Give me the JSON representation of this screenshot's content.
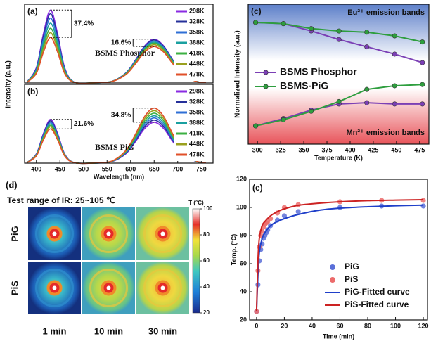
{
  "chart_data": [
    {
      "type": "line",
      "label": "(a)",
      "ylabel": "Intensity (a.u.)",
      "inset_label": "BSMS Phosphor",
      "annotations": [
        "37.4%",
        "16.6%"
      ],
      "legend": "right",
      "x": [
        380,
        400,
        415,
        430,
        445,
        460,
        480,
        520,
        560,
        590,
        610,
        630,
        650,
        670,
        690,
        710,
        740,
        760
      ],
      "xlim": [
        375,
        775
      ],
      "ylim": [
        0,
        1.08
      ],
      "series": [
        {
          "name": "298K",
          "color": "#8a2be2",
          "values": [
            0.013,
            0.211,
            0.678,
            1,
            0.678,
            0.211,
            0.013,
            0.001,
            0.022,
            0.138,
            0.312,
            0.51,
            0.6,
            0.51,
            0.312,
            0.138,
            0.022,
            0.004
          ]
        },
        {
          "name": "328K",
          "color": "#26309a",
          "values": [
            0.012,
            0.2,
            0.644,
            0.95,
            0.644,
            0.2,
            0.012,
            0.001,
            0.022,
            0.136,
            0.307,
            0.502,
            0.59,
            0.502,
            0.307,
            0.136,
            0.022,
            0.004
          ]
        },
        {
          "name": "358K",
          "color": "#2f6fd6",
          "values": [
            0.012,
            0.188,
            0.603,
            0.89,
            0.603,
            0.188,
            0.012,
            0.001,
            0.021,
            0.132,
            0.299,
            0.489,
            0.575,
            0.489,
            0.299,
            0.132,
            0.021,
            0.004
          ]
        },
        {
          "name": "388K",
          "color": "#1aa0a0",
          "values": [
            0.011,
            0.173,
            0.556,
            0.82,
            0.556,
            0.173,
            0.011,
            0.001,
            0.021,
            0.129,
            0.291,
            0.476,
            0.56,
            0.476,
            0.291,
            0.129,
            0.021,
            0.004
          ]
        },
        {
          "name": "418K",
          "color": "#3cb043",
          "values": [
            0.01,
            0.158,
            0.509,
            0.75,
            0.509,
            0.158,
            0.01,
            0.001,
            0.02,
            0.125,
            0.283,
            0.463,
            0.545,
            0.463,
            0.283,
            0.125,
            0.02,
            0.004
          ]
        },
        {
          "name": "448K",
          "color": "#9aa01e",
          "values": [
            0.009,
            0.146,
            0.468,
            0.69,
            0.468,
            0.146,
            0.009,
            0.001,
            0.019,
            0.121,
            0.273,
            0.446,
            0.525,
            0.446,
            0.273,
            0.121,
            0.019,
            0.004
          ]
        },
        {
          "name": "478K",
          "color": "#e0502a",
          "values": [
            0.008,
            0.132,
            0.424,
            0.626,
            0.424,
            0.132,
            0.008,
            0.001,
            0.019,
            0.115,
            0.26,
            0.425,
            0.5,
            0.425,
            0.26,
            0.115,
            0.019,
            0.004
          ]
        }
      ]
    },
    {
      "type": "line",
      "label": "(b)",
      "xlabel": "Wavelength (nm)",
      "inset_label": "BSMS PiG",
      "annotations": [
        "21.6%",
        "34.8%"
      ],
      "legend": "right",
      "x": [
        380,
        400,
        415,
        430,
        445,
        460,
        480,
        520,
        560,
        590,
        610,
        630,
        650,
        670,
        690,
        710,
        740,
        760
      ],
      "xlim": [
        375,
        775
      ],
      "xticks": [
        400,
        450,
        500,
        550,
        600,
        650,
        700,
        750
      ],
      "ylim": [
        0,
        1.08
      ],
      "series": [
        {
          "name": "298K",
          "color": "#8a2be2",
          "values": [
            0.008,
            0.127,
            0.407,
            0.6,
            0.407,
            0.127,
            0.008,
            0.001,
            0.021,
            0.129,
            0.291,
            0.476,
            0.56,
            0.476,
            0.291,
            0.129,
            0.021,
            0.004
          ]
        },
        {
          "name": "328K",
          "color": "#26309a",
          "values": [
            0.008,
            0.122,
            0.393,
            0.58,
            0.393,
            0.122,
            0.008,
            0.001,
            0.022,
            0.136,
            0.307,
            0.502,
            0.59,
            0.502,
            0.307,
            0.136,
            0.022,
            0.004
          ]
        },
        {
          "name": "358K",
          "color": "#2f6fd6",
          "values": [
            0.007,
            0.118,
            0.38,
            0.56,
            0.38,
            0.118,
            0.007,
            0.001,
            0.023,
            0.143,
            0.322,
            0.527,
            0.62,
            0.527,
            0.322,
            0.143,
            0.023,
            0.004
          ]
        },
        {
          "name": "388K",
          "color": "#1aa0a0",
          "values": [
            0.007,
            0.114,
            0.366,
            0.54,
            0.366,
            0.114,
            0.007,
            0.001,
            0.024,
            0.15,
            0.338,
            0.553,
            0.65,
            0.553,
            0.338,
            0.15,
            0.024,
            0.005
          ]
        },
        {
          "name": "418K",
          "color": "#3cb043",
          "values": [
            0.007,
            0.11,
            0.353,
            0.52,
            0.353,
            0.11,
            0.007,
            0.001,
            0.025,
            0.158,
            0.356,
            0.582,
            0.685,
            0.582,
            0.356,
            0.158,
            0.025,
            0.005
          ]
        },
        {
          "name": "448K",
          "color": "#9aa01e",
          "values": [
            0.007,
            0.106,
            0.339,
            0.5,
            0.339,
            0.106,
            0.007,
            0.001,
            0.027,
            0.166,
            0.374,
            0.612,
            0.72,
            0.612,
            0.374,
            0.166,
            0.027,
            0.005
          ]
        },
        {
          "name": "478K",
          "color": "#e0502a",
          "values": [
            0.006,
            0.099,
            0.319,
            0.47,
            0.319,
            0.099,
            0.006,
            0.001,
            0.028,
            0.174,
            0.393,
            0.642,
            0.755,
            0.642,
            0.393,
            0.174,
            0.028,
            0.005
          ]
        }
      ]
    },
    {
      "type": "line",
      "label": "(c)",
      "markers": true,
      "legend": "left",
      "ylabel": "Normalized Intensity (a.u.)",
      "xlabel": "Temperature (K)",
      "band_labels": [
        "Eu²⁺ emission bands",
        "Mn²⁺ emission bands"
      ],
      "x": [
        298,
        328,
        358,
        388,
        418,
        448,
        478
      ],
      "xlim": [
        290,
        485
      ],
      "xticks": [
        300,
        325,
        350,
        375,
        400,
        425,
        450,
        475
      ],
      "ylim": [
        0,
        1.15
      ],
      "series": [
        {
          "name": "BSMS Phosphor",
          "color": "#7b3fb5",
          "eu_values": [
            1,
            0.99,
            0.93,
            0.86,
            0.8,
            0.74,
            0.67
          ],
          "mn_values": [
            0.15,
            0.21,
            0.28,
            0.33,
            0.34,
            0.33,
            0.33
          ]
        },
        {
          "name": "BSMS-PiG",
          "color": "#2e9e3e",
          "eu_values": [
            1,
            0.99,
            0.95,
            0.93,
            0.92,
            0.89,
            0.84
          ],
          "mn_values": [
            0.15,
            0.2,
            0.27,
            0.35,
            0.45,
            0.48,
            0.49
          ]
        }
      ]
    },
    {
      "type": "thermal",
      "label": "(d)",
      "title": "Test range of IR: 25~105 ℃",
      "rows": [
        "PiG",
        "PiS"
      ],
      "columns": [
        "1 min",
        "10 min",
        "30 min"
      ],
      "colorbar_title": "T (°C)",
      "clim": [
        20,
        100
      ],
      "cticks": [
        20,
        40,
        60,
        80,
        100
      ]
    },
    {
      "type": "scatter",
      "label": "(e)",
      "ylabel": "Temp. (°C)",
      "xlabel": "Time (min)",
      "xlim": [
        -5,
        123
      ],
      "xticks": [
        0,
        20,
        40,
        60,
        80,
        100,
        120
      ],
      "ylim": [
        20,
        120
      ],
      "yticks": [
        20,
        40,
        60,
        80,
        100,
        120
      ],
      "series": [
        {
          "name": "PiG",
          "kind": "scatter",
          "color": "#5a6fd8",
          "x": [
            0,
            1,
            2,
            3,
            4,
            5,
            6,
            7,
            8,
            10,
            15,
            20,
            30,
            60,
            90,
            120
          ],
          "values": [
            26,
            45,
            62,
            70,
            74,
            78,
            80,
            82,
            84,
            87,
            91,
            94,
            97,
            100,
            101,
            101
          ]
        },
        {
          "name": "PiS",
          "kind": "scatter",
          "color": "#ec6b6b",
          "x": [
            0,
            1,
            2,
            3,
            4,
            5,
            6,
            7,
            8,
            10,
            15,
            20,
            30,
            60,
            90,
            120
          ],
          "values": [
            26,
            55,
            72,
            80,
            83,
            86,
            88,
            89,
            90,
            92,
            96,
            100,
            102,
            104,
            105,
            105
          ]
        },
        {
          "name": "PiG-Fitted curve",
          "kind": "line",
          "color": "#1f3fc9",
          "x": [
            0,
            1,
            2,
            4,
            6,
            10,
            15,
            20,
            30,
            45,
            60,
            80,
            100,
            120
          ],
          "values": [
            26,
            52,
            68,
            78,
            82,
            87,
            90,
            92,
            95,
            98,
            99.5,
            100.5,
            101.2,
            101.6
          ]
        },
        {
          "name": "PiS-Fitted curve",
          "kind": "line",
          "color": "#cc2222",
          "x": [
            0,
            1,
            2,
            4,
            6,
            10,
            15,
            20,
            30,
            45,
            60,
            80,
            100,
            120
          ],
          "values": [
            26,
            62,
            78,
            87,
            90,
            94,
            97,
            99,
            101.5,
            103,
            104,
            104.8,
            105.2,
            105.5
          ]
        }
      ]
    }
  ]
}
